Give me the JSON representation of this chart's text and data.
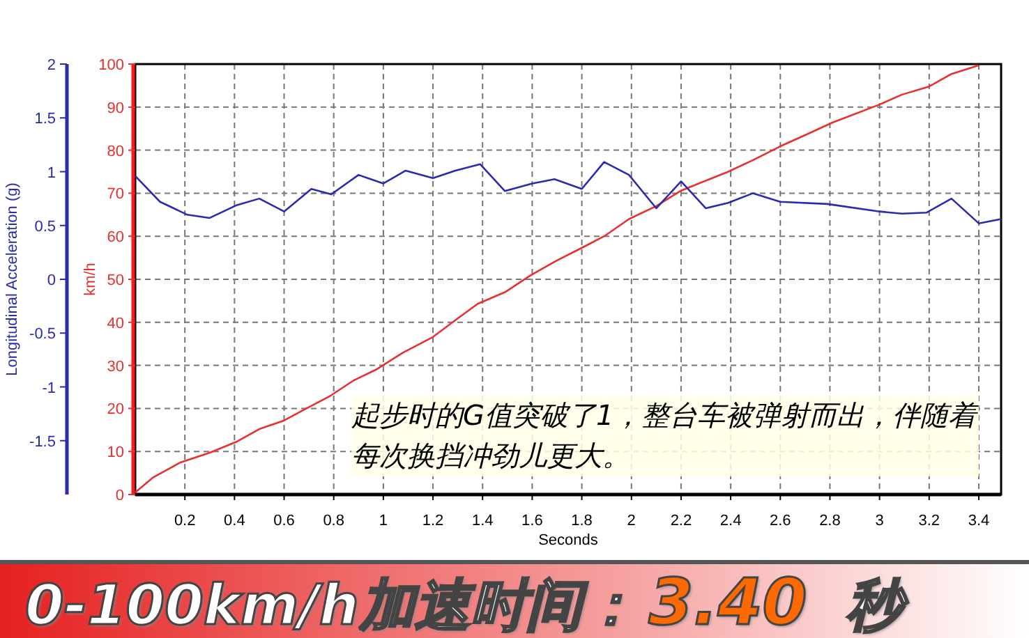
{
  "chart_data": {
    "type": "line",
    "xlabel": "Seconds",
    "ylabel": "km/h",
    "y2label": "Longitudinal Acceleration (g)",
    "xlim": [
      0,
      3.49
    ],
    "xticks": [
      0.2,
      0.4,
      0.6,
      0.8,
      1,
      1.2,
      1.4,
      1.6,
      1.8,
      2,
      2.2,
      2.4,
      2.6,
      2.8,
      3,
      3.2,
      3.4
    ],
    "ylim": [
      0,
      100
    ],
    "yticks": [
      0,
      10,
      20,
      30,
      40,
      50,
      60,
      70,
      80,
      90,
      100
    ],
    "y2lim": [
      -2,
      2
    ],
    "y2ticks": [
      2,
      1.5,
      1,
      0.5,
      0,
      -0.5,
      -1,
      -1.5
    ],
    "grid": true,
    "series": [
      {
        "color": "#e8312f",
        "x": [
          0,
          0.07,
          0.18,
          0.3,
          0.41,
          0.5,
          0.6,
          0.69,
          0.78,
          0.88,
          0.97,
          1.08,
          1.2,
          1.29,
          1.38,
          1.49,
          1.59,
          1.7,
          1.81,
          1.89,
          1.99,
          2.1,
          2.2,
          2.39,
          2.49,
          2.6,
          2.7,
          2.81,
          3.0,
          3.09,
          3.2,
          3.29,
          3.4
        ],
        "values": [
          0.5,
          3.9,
          7.4,
          9.7,
          12.3,
          15.2,
          17.2,
          20,
          22.7,
          26.5,
          29,
          33,
          36.6,
          40.5,
          44.3,
          47,
          50.8,
          54.4,
          57.6,
          60,
          64,
          67,
          70.6,
          75,
          77.7,
          80.9,
          83.5,
          86.4,
          90.6,
          92.9,
          94.8,
          97.7,
          99.7
        ]
      },
      {
        "axis": "y2",
        "color": "#2b2bb0",
        "x": [
          0,
          0.1,
          0.21,
          0.3,
          0.41,
          0.5,
          0.6,
          0.71,
          0.79,
          0.9,
          1.0,
          1.09,
          1.2,
          1.29,
          1.39,
          1.49,
          1.6,
          1.69,
          1.8,
          1.89,
          1.99,
          2.1,
          2.2,
          2.3,
          2.39,
          2.49,
          2.6,
          2.79,
          3.0,
          3.09,
          3.19,
          3.29,
          3.4,
          3.49
        ],
        "values": [
          0.96,
          0.72,
          0.6,
          0.57,
          0.69,
          0.75,
          0.63,
          0.84,
          0.79,
          0.97,
          0.89,
          1.01,
          0.94,
          1.01,
          1.07,
          0.82,
          0.89,
          0.93,
          0.84,
          1.09,
          0.97,
          0.66,
          0.91,
          0.66,
          0.71,
          0.8,
          0.72,
          0.7,
          0.63,
          0.61,
          0.62,
          0.75,
          0.52,
          0.56
        ]
      }
    ],
    "annotations": [
      "起步时的G值突破了1，整台车被弹射而出，伴随着每次换挡冲劲儿更大。",
      "0-100km/h加速时间：",
      "3.40",
      "秒"
    ]
  }
}
